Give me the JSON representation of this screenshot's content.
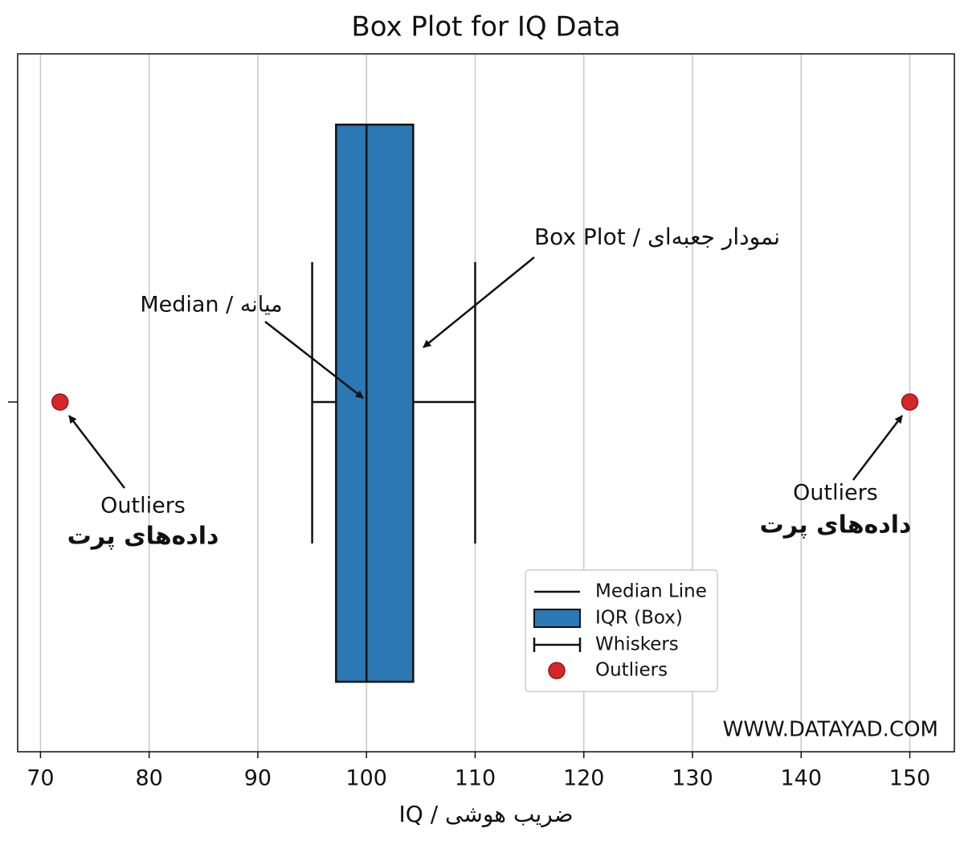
{
  "chart_data": {
    "type": "box",
    "title": "Box Plot for IQ Data",
    "xlabel": "IQ / ضریب هوشی",
    "box": {
      "whislo": 95,
      "q1": 97.2,
      "median": 100,
      "q3": 104.3,
      "whishi": 110,
      "outliers": [
        71.8,
        150
      ],
      "color": "#2b78b4",
      "outlier_color": "#d62728"
    },
    "xlim": [
      67.9,
      154.1
    ],
    "xticks": [
      70,
      80,
      90,
      100,
      110,
      120,
      130,
      140,
      150
    ],
    "grid": true,
    "legend": [
      "Median Line",
      "IQR (Box)",
      "Whiskers",
      "Outliers"
    ],
    "annotations": [
      "Box Plot / نمودار جعبه‌ای",
      "Median / میانه",
      "Outliers",
      "داده‌های پرت",
      "Outliers",
      "داده‌های پرت"
    ],
    "watermark": "WWW.DATAYAD.COM"
  }
}
